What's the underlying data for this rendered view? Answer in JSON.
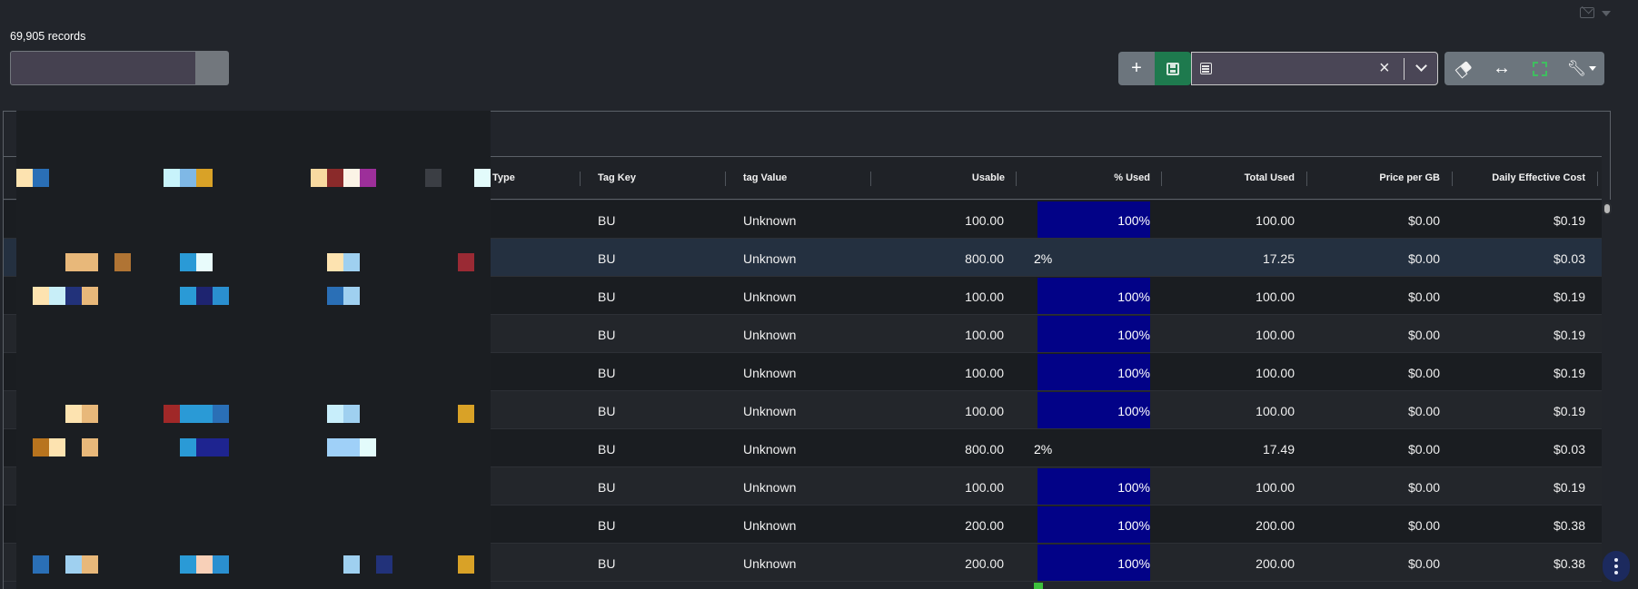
{
  "records_label": "69,905 records",
  "search": {
    "value": ""
  },
  "toolbar": {
    "add_icon": "plus-icon",
    "save_icon": "save-icon",
    "view_select": {
      "value": "",
      "icon": "list-icon"
    },
    "clear_filters_icon": "eraser-icon",
    "autosize_icon": "arrows-horizontal-icon",
    "fullscreen_icon": "expand-icon",
    "tools_icon": "wrench-icon"
  },
  "columns": {
    "type": "Type",
    "tag_key": "Tag Key",
    "tag_value": "tag Value",
    "usable": "Usable",
    "pct_used": "% Used",
    "total_used": "Total Used",
    "price_per_gb": "Price per GB",
    "daily_cost": "Daily Effective Cost"
  },
  "rows": [
    {
      "tag_key": "BU",
      "tag_value": "Unknown",
      "usable": "100.00",
      "pct_used": "100%",
      "pct_fraction": 1.0,
      "total_used": "100.00",
      "price_per_gb": "$0.00",
      "daily_cost": "$0.19"
    },
    {
      "tag_key": "BU",
      "tag_value": "Unknown",
      "usable": "800.00",
      "pct_used": "2%",
      "pct_fraction": 0.02,
      "total_used": "17.25",
      "price_per_gb": "$0.00",
      "daily_cost": "$0.03"
    },
    {
      "tag_key": "BU",
      "tag_value": "Unknown",
      "usable": "100.00",
      "pct_used": "100%",
      "pct_fraction": 1.0,
      "total_used": "100.00",
      "price_per_gb": "$0.00",
      "daily_cost": "$0.19"
    },
    {
      "tag_key": "BU",
      "tag_value": "Unknown",
      "usable": "100.00",
      "pct_used": "100%",
      "pct_fraction": 1.0,
      "total_used": "100.00",
      "price_per_gb": "$0.00",
      "daily_cost": "$0.19"
    },
    {
      "tag_key": "BU",
      "tag_value": "Unknown",
      "usable": "100.00",
      "pct_used": "100%",
      "pct_fraction": 1.0,
      "total_used": "100.00",
      "price_per_gb": "$0.00",
      "daily_cost": "$0.19"
    },
    {
      "tag_key": "BU",
      "tag_value": "Unknown",
      "usable": "100.00",
      "pct_used": "100%",
      "pct_fraction": 1.0,
      "total_used": "100.00",
      "price_per_gb": "$0.00",
      "daily_cost": "$0.19"
    },
    {
      "tag_key": "BU",
      "tag_value": "Unknown",
      "usable": "800.00",
      "pct_used": "2%",
      "pct_fraction": 0.02,
      "total_used": "17.49",
      "price_per_gb": "$0.00",
      "daily_cost": "$0.03"
    },
    {
      "tag_key": "BU",
      "tag_value": "Unknown",
      "usable": "100.00",
      "pct_used": "100%",
      "pct_fraction": 1.0,
      "total_used": "100.00",
      "price_per_gb": "$0.00",
      "daily_cost": "$0.19"
    },
    {
      "tag_key": "BU",
      "tag_value": "Unknown",
      "usable": "200.00",
      "pct_used": "100%",
      "pct_fraction": 1.0,
      "total_used": "200.00",
      "price_per_gb": "$0.00",
      "daily_cost": "$0.38"
    },
    {
      "tag_key": "BU",
      "tag_value": "Unknown",
      "usable": "200.00",
      "pct_used": "100%",
      "pct_fraction": 1.0,
      "total_used": "200.00",
      "price_per_gb": "$0.00",
      "daily_cost": "$0.38"
    }
  ],
  "colors": {
    "bar_fill": "#020287",
    "row_highlight": "#243040",
    "save_green": "#1e7a4e",
    "button_gray": "#6c757d"
  }
}
